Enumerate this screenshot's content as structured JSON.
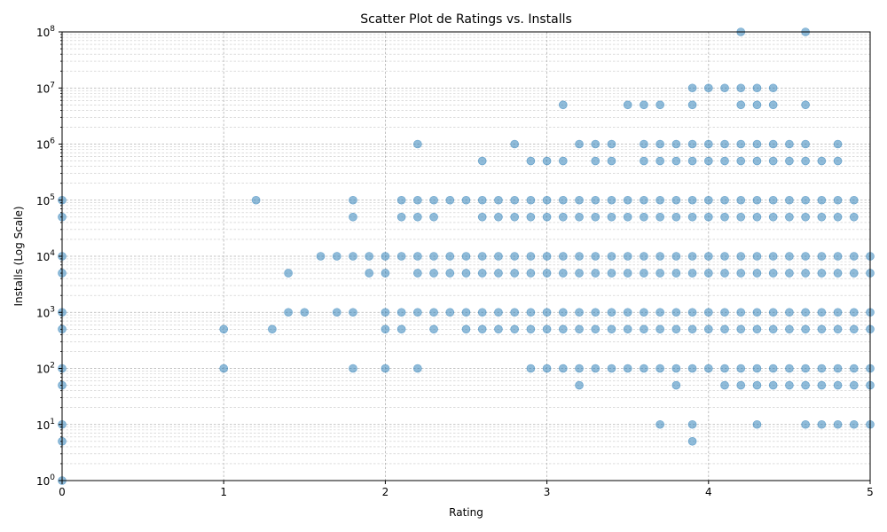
{
  "chart_data": {
    "type": "scatter",
    "title": "Scatter Plot de Ratings vs. Installs",
    "xlabel": "Rating",
    "ylabel": "Installs (Log Scale)",
    "xlim": [
      0,
      5
    ],
    "ylim": [
      1,
      100000000
    ],
    "yscale": "log",
    "grid": "on",
    "color": "#1f77b4",
    "x_ticks": [
      "0",
      "1",
      "2",
      "3",
      "4",
      "5"
    ],
    "y_ticks": [
      {
        "base": "10",
        "exp": "0"
      },
      {
        "base": "10",
        "exp": "1"
      },
      {
        "base": "10",
        "exp": "2"
      },
      {
        "base": "10",
        "exp": "3"
      },
      {
        "base": "10",
        "exp": "4"
      },
      {
        "base": "10",
        "exp": "5"
      },
      {
        "base": "10",
        "exp": "6"
      },
      {
        "base": "10",
        "exp": "7"
      },
      {
        "base": "10",
        "exp": "8"
      }
    ],
    "points": [
      [
        0,
        1
      ],
      [
        0,
        5
      ],
      [
        0,
        10
      ],
      [
        0,
        50
      ],
      [
        0,
        100
      ],
      [
        0,
        500
      ],
      [
        0,
        1000
      ],
      [
        0,
        5000
      ],
      [
        0,
        10000
      ],
      [
        0,
        50000
      ],
      [
        0,
        100000
      ],
      [
        1.0,
        100
      ],
      [
        1.0,
        500
      ],
      [
        1.2,
        100000
      ],
      [
        1.3,
        500
      ],
      [
        1.4,
        1000
      ],
      [
        1.4,
        5000
      ],
      [
        1.5,
        1000
      ],
      [
        1.6,
        10000
      ],
      [
        1.7,
        1000
      ],
      [
        1.7,
        10000
      ],
      [
        1.8,
        100
      ],
      [
        1.8,
        1000
      ],
      [
        1.8,
        10000
      ],
      [
        1.8,
        50000
      ],
      [
        1.8,
        100000
      ],
      [
        1.9,
        5000
      ],
      [
        1.9,
        10000
      ],
      [
        2.0,
        100
      ],
      [
        2.0,
        500
      ],
      [
        2.0,
        1000
      ],
      [
        2.0,
        5000
      ],
      [
        2.0,
        10000
      ],
      [
        2.1,
        500
      ],
      [
        2.1,
        1000
      ],
      [
        2.1,
        10000
      ],
      [
        2.1,
        50000
      ],
      [
        2.1,
        100000
      ],
      [
        2.2,
        100
      ],
      [
        2.2,
        1000
      ],
      [
        2.2,
        5000
      ],
      [
        2.2,
        10000
      ],
      [
        2.2,
        50000
      ],
      [
        2.2,
        100000
      ],
      [
        2.2,
        1000000
      ],
      [
        2.3,
        500
      ],
      [
        2.3,
        1000
      ],
      [
        2.3,
        5000
      ],
      [
        2.3,
        10000
      ],
      [
        2.3,
        50000
      ],
      [
        2.3,
        100000
      ],
      [
        2.4,
        1000
      ],
      [
        2.4,
        5000
      ],
      [
        2.4,
        10000
      ],
      [
        2.4,
        100000
      ],
      [
        2.5,
        500
      ],
      [
        2.5,
        1000
      ],
      [
        2.5,
        5000
      ],
      [
        2.5,
        10000
      ],
      [
        2.5,
        100000
      ],
      [
        2.6,
        500
      ],
      [
        2.6,
        1000
      ],
      [
        2.6,
        5000
      ],
      [
        2.6,
        10000
      ],
      [
        2.6,
        50000
      ],
      [
        2.6,
        100000
      ],
      [
        2.6,
        500000
      ],
      [
        2.7,
        500
      ],
      [
        2.7,
        1000
      ],
      [
        2.7,
        5000
      ],
      [
        2.7,
        10000
      ],
      [
        2.7,
        50000
      ],
      [
        2.7,
        100000
      ],
      [
        2.8,
        500
      ],
      [
        2.8,
        1000
      ],
      [
        2.8,
        5000
      ],
      [
        2.8,
        10000
      ],
      [
        2.8,
        50000
      ],
      [
        2.8,
        100000
      ],
      [
        2.8,
        1000000
      ],
      [
        2.9,
        100
      ],
      [
        2.9,
        500
      ],
      [
        2.9,
        1000
      ],
      [
        2.9,
        5000
      ],
      [
        2.9,
        10000
      ],
      [
        2.9,
        50000
      ],
      [
        2.9,
        100000
      ],
      [
        2.9,
        500000
      ],
      [
        3.0,
        100
      ],
      [
        3.0,
        500
      ],
      [
        3.0,
        1000
      ],
      [
        3.0,
        5000
      ],
      [
        3.0,
        10000
      ],
      [
        3.0,
        50000
      ],
      [
        3.0,
        100000
      ],
      [
        3.0,
        500000
      ],
      [
        3.1,
        100
      ],
      [
        3.1,
        500
      ],
      [
        3.1,
        1000
      ],
      [
        3.1,
        5000
      ],
      [
        3.1,
        10000
      ],
      [
        3.1,
        50000
      ],
      [
        3.1,
        100000
      ],
      [
        3.1,
        500000
      ],
      [
        3.1,
        5000000
      ],
      [
        3.2,
        50
      ],
      [
        3.2,
        100
      ],
      [
        3.2,
        500
      ],
      [
        3.2,
        1000
      ],
      [
        3.2,
        5000
      ],
      [
        3.2,
        10000
      ],
      [
        3.2,
        50000
      ],
      [
        3.2,
        100000
      ],
      [
        3.2,
        1000000
      ],
      [
        3.3,
        100
      ],
      [
        3.3,
        500
      ],
      [
        3.3,
        1000
      ],
      [
        3.3,
        5000
      ],
      [
        3.3,
        10000
      ],
      [
        3.3,
        50000
      ],
      [
        3.3,
        100000
      ],
      [
        3.3,
        500000
      ],
      [
        3.3,
        1000000
      ],
      [
        3.4,
        100
      ],
      [
        3.4,
        500
      ],
      [
        3.4,
        1000
      ],
      [
        3.4,
        5000
      ],
      [
        3.4,
        10000
      ],
      [
        3.4,
        50000
      ],
      [
        3.4,
        100000
      ],
      [
        3.4,
        500000
      ],
      [
        3.4,
        1000000
      ],
      [
        3.5,
        100
      ],
      [
        3.5,
        500
      ],
      [
        3.5,
        1000
      ],
      [
        3.5,
        5000
      ],
      [
        3.5,
        10000
      ],
      [
        3.5,
        50000
      ],
      [
        3.5,
        100000
      ],
      [
        3.5,
        5000000
      ],
      [
        3.6,
        100
      ],
      [
        3.6,
        500
      ],
      [
        3.6,
        1000
      ],
      [
        3.6,
        5000
      ],
      [
        3.6,
        10000
      ],
      [
        3.6,
        50000
      ],
      [
        3.6,
        100000
      ],
      [
        3.6,
        500000
      ],
      [
        3.6,
        1000000
      ],
      [
        3.6,
        5000000
      ],
      [
        3.7,
        10
      ],
      [
        3.7,
        100
      ],
      [
        3.7,
        500
      ],
      [
        3.7,
        1000
      ],
      [
        3.7,
        5000
      ],
      [
        3.7,
        10000
      ],
      [
        3.7,
        50000
      ],
      [
        3.7,
        100000
      ],
      [
        3.7,
        500000
      ],
      [
        3.7,
        1000000
      ],
      [
        3.7,
        5000000
      ],
      [
        3.8,
        50
      ],
      [
        3.8,
        100
      ],
      [
        3.8,
        500
      ],
      [
        3.8,
        1000
      ],
      [
        3.8,
        5000
      ],
      [
        3.8,
        10000
      ],
      [
        3.8,
        50000
      ],
      [
        3.8,
        100000
      ],
      [
        3.8,
        500000
      ],
      [
        3.8,
        1000000
      ],
      [
        3.9,
        5
      ],
      [
        3.9,
        10
      ],
      [
        3.9,
        100
      ],
      [
        3.9,
        500
      ],
      [
        3.9,
        1000
      ],
      [
        3.9,
        5000
      ],
      [
        3.9,
        10000
      ],
      [
        3.9,
        50000
      ],
      [
        3.9,
        100000
      ],
      [
        3.9,
        500000
      ],
      [
        3.9,
        1000000
      ],
      [
        3.9,
        5000000
      ],
      [
        3.9,
        10000000
      ],
      [
        4.0,
        100
      ],
      [
        4.0,
        500
      ],
      [
        4.0,
        1000
      ],
      [
        4.0,
        5000
      ],
      [
        4.0,
        10000
      ],
      [
        4.0,
        50000
      ],
      [
        4.0,
        100000
      ],
      [
        4.0,
        500000
      ],
      [
        4.0,
        1000000
      ],
      [
        4.0,
        10000000
      ],
      [
        4.1,
        50
      ],
      [
        4.1,
        100
      ],
      [
        4.1,
        500
      ],
      [
        4.1,
        1000
      ],
      [
        4.1,
        5000
      ],
      [
        4.1,
        10000
      ],
      [
        4.1,
        50000
      ],
      [
        4.1,
        100000
      ],
      [
        4.1,
        500000
      ],
      [
        4.1,
        1000000
      ],
      [
        4.1,
        10000000
      ],
      [
        4.2,
        50
      ],
      [
        4.2,
        100
      ],
      [
        4.2,
        500
      ],
      [
        4.2,
        1000
      ],
      [
        4.2,
        5000
      ],
      [
        4.2,
        10000
      ],
      [
        4.2,
        50000
      ],
      [
        4.2,
        100000
      ],
      [
        4.2,
        500000
      ],
      [
        4.2,
        1000000
      ],
      [
        4.2,
        5000000
      ],
      [
        4.2,
        10000000
      ],
      [
        4.2,
        100000000
      ],
      [
        4.3,
        10
      ],
      [
        4.3,
        50
      ],
      [
        4.3,
        100
      ],
      [
        4.3,
        500
      ],
      [
        4.3,
        1000
      ],
      [
        4.3,
        5000
      ],
      [
        4.3,
        10000
      ],
      [
        4.3,
        50000
      ],
      [
        4.3,
        100000
      ],
      [
        4.3,
        500000
      ],
      [
        4.3,
        1000000
      ],
      [
        4.3,
        5000000
      ],
      [
        4.3,
        10000000
      ],
      [
        4.4,
        50
      ],
      [
        4.4,
        100
      ],
      [
        4.4,
        500
      ],
      [
        4.4,
        1000
      ],
      [
        4.4,
        5000
      ],
      [
        4.4,
        10000
      ],
      [
        4.4,
        50000
      ],
      [
        4.4,
        100000
      ],
      [
        4.4,
        500000
      ],
      [
        4.4,
        1000000
      ],
      [
        4.4,
        5000000
      ],
      [
        4.4,
        10000000
      ],
      [
        4.5,
        50
      ],
      [
        4.5,
        100
      ],
      [
        4.5,
        500
      ],
      [
        4.5,
        1000
      ],
      [
        4.5,
        5000
      ],
      [
        4.5,
        10000
      ],
      [
        4.5,
        50000
      ],
      [
        4.5,
        100000
      ],
      [
        4.5,
        500000
      ],
      [
        4.5,
        1000000
      ],
      [
        4.6,
        10
      ],
      [
        4.6,
        50
      ],
      [
        4.6,
        100
      ],
      [
        4.6,
        500
      ],
      [
        4.6,
        1000
      ],
      [
        4.6,
        5000
      ],
      [
        4.6,
        10000
      ],
      [
        4.6,
        50000
      ],
      [
        4.6,
        100000
      ],
      [
        4.6,
        500000
      ],
      [
        4.6,
        1000000
      ],
      [
        4.6,
        5000000
      ],
      [
        4.6,
        100000000
      ],
      [
        4.7,
        10
      ],
      [
        4.7,
        50
      ],
      [
        4.7,
        100
      ],
      [
        4.7,
        500
      ],
      [
        4.7,
        1000
      ],
      [
        4.7,
        5000
      ],
      [
        4.7,
        10000
      ],
      [
        4.7,
        50000
      ],
      [
        4.7,
        100000
      ],
      [
        4.7,
        500000
      ],
      [
        4.8,
        10
      ],
      [
        4.8,
        50
      ],
      [
        4.8,
        100
      ],
      [
        4.8,
        500
      ],
      [
        4.8,
        1000
      ],
      [
        4.8,
        5000
      ],
      [
        4.8,
        10000
      ],
      [
        4.8,
        50000
      ],
      [
        4.8,
        100000
      ],
      [
        4.8,
        500000
      ],
      [
        4.8,
        1000000
      ],
      [
        4.9,
        10
      ],
      [
        4.9,
        50
      ],
      [
        4.9,
        100
      ],
      [
        4.9,
        500
      ],
      [
        4.9,
        1000
      ],
      [
        4.9,
        5000
      ],
      [
        4.9,
        10000
      ],
      [
        4.9,
        50000
      ],
      [
        4.9,
        100000
      ],
      [
        5.0,
        10
      ],
      [
        5.0,
        50
      ],
      [
        5.0,
        100
      ],
      [
        5.0,
        500
      ],
      [
        5.0,
        1000
      ],
      [
        5.0,
        5000
      ],
      [
        5.0,
        10000
      ]
    ]
  }
}
